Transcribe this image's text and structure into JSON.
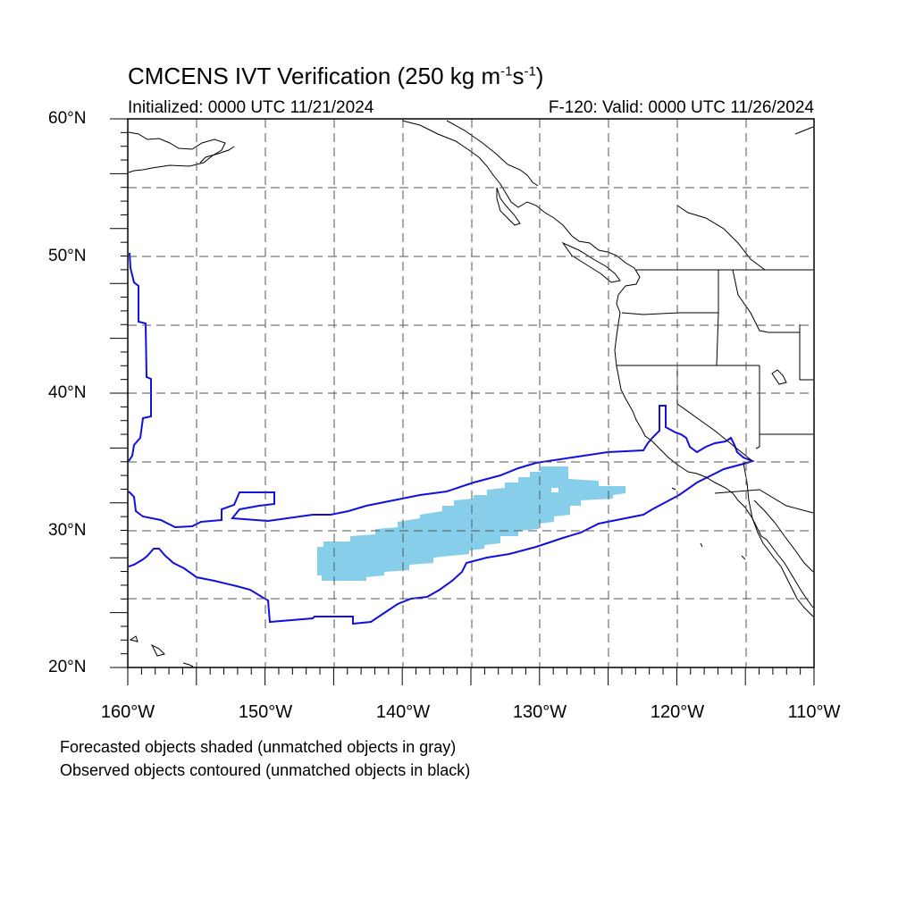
{
  "title": {
    "main": "CMCENS IVT Verification (250 kg m",
    "exp1": "-1",
    "mid": "s",
    "exp2": "-1",
    "end": ")"
  },
  "init_text": "Initialized: 0000 UTC 11/21/2024",
  "valid_text": "F-120: Valid: 0000 UTC 11/26/2024",
  "lat_labels": [
    "60°N",
    "50°N",
    "40°N",
    "30°N",
    "20°N"
  ],
  "lon_labels": [
    "160°W",
    "150°W",
    "140°W",
    "130°W",
    "120°W",
    "110°W"
  ],
  "notes": [
    "Forecasted objects shaded (unmatched objects in gray)",
    "Observed objects contoured (unmatched objects in black)"
  ],
  "colors": {
    "forecast_fill": "#87ceeb",
    "observed_contour": "#1010e0",
    "coastline": "#000000",
    "grid": "#555555"
  }
}
